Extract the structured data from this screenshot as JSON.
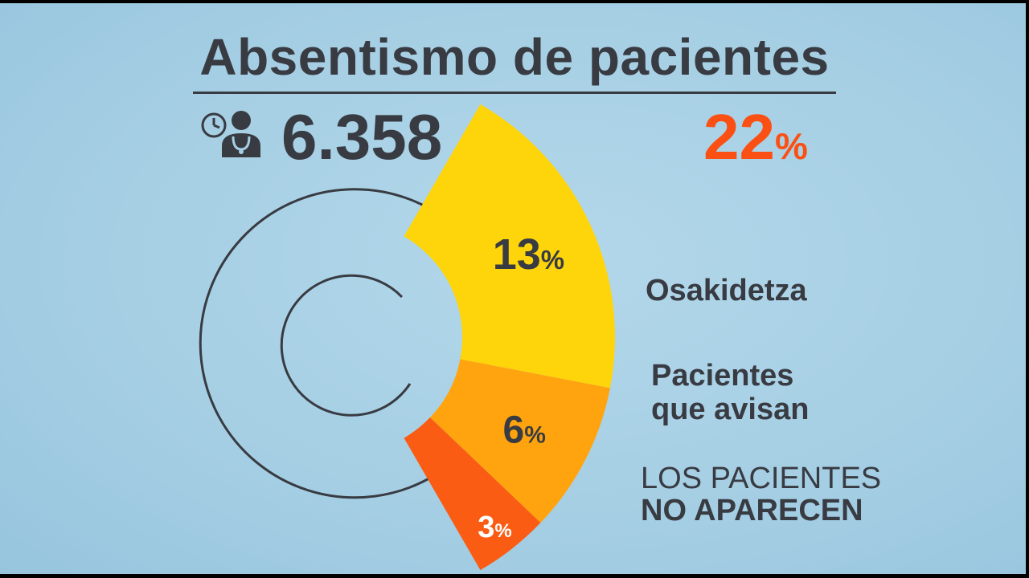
{
  "header": {
    "title": "Absentismo de pacientes",
    "total_patients": "6.358",
    "total_percent": "22",
    "percent_unit": "%"
  },
  "icons": {
    "patient": "doctor-clock-icon"
  },
  "colors": {
    "background": "#a6cfe4",
    "text": "#383b42",
    "accent": "#fb5014",
    "osakidetza": "#fed40a",
    "avisan": "#ffa40f",
    "no_aparecen": "#fb5c14"
  },
  "labels": {
    "osakidetza": "Osakidetza",
    "avisan_line1": "Pacientes",
    "avisan_line2": "que avisan",
    "no_aparecen_line1": "LOS PACIENTES",
    "no_aparecen_line2": "NO APARECEN"
  },
  "chart_data": {
    "type": "pie",
    "total_percent": 22,
    "slices": [
      {
        "label": "Osakidetza",
        "value": 13,
        "display": "13"
      },
      {
        "label": "Pacientes que avisan",
        "value": 6,
        "display": "6"
      },
      {
        "label": "LOS PACIENTES NO APARECEN",
        "value": 3,
        "display": "3"
      }
    ]
  }
}
